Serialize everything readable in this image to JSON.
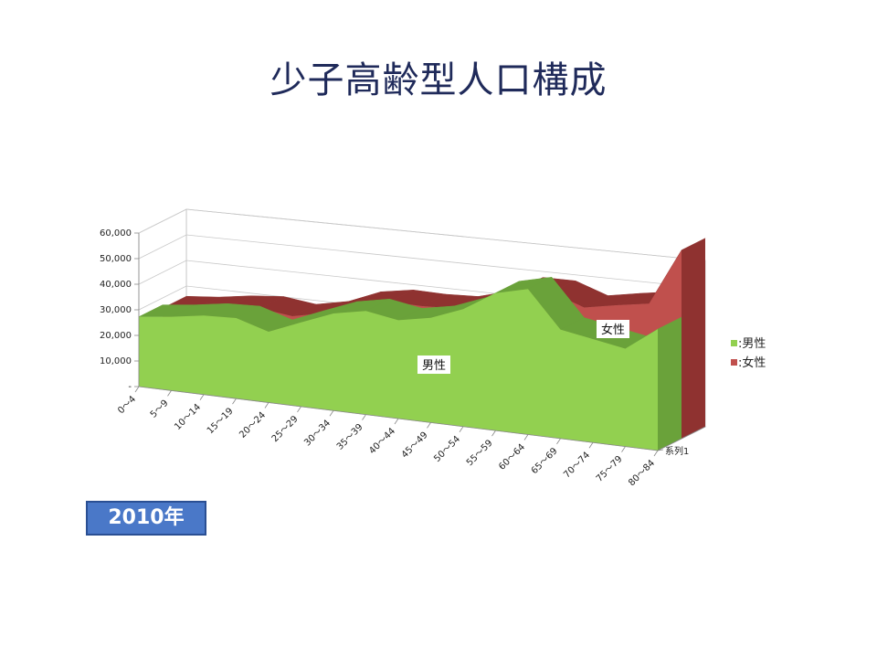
{
  "slide": {
    "title": "少子高齢型人口構成",
    "year_badge": "2010年"
  },
  "chart_data": {
    "type": "area",
    "categories": [
      "0～4",
      "5～9",
      "10～14",
      "15～19",
      "20～24",
      "25～29",
      "30～34",
      "35～39",
      "40～44",
      "45～49",
      "50～54",
      "55～59",
      "60～64",
      "65～69",
      "70～74",
      "75～79",
      "80～84"
    ],
    "series": [
      {
        "name": "男性",
        "color": "#92d050",
        "values": [
          27300,
          28700,
          30600,
          31000,
          27100,
          32100,
          36800,
          39100,
          36900,
          39100,
          43600,
          50800,
          53500,
          39900,
          37700,
          35500,
          43800
        ]
      },
      {
        "name": "女性",
        "color": "#c0504d",
        "values": [
          26000,
          27100,
          29000,
          30100,
          28500,
          31000,
          36000,
          38000,
          37700,
          38200,
          41500,
          47800,
          47800,
          43600,
          45700,
          47500,
          68000
        ]
      }
    ],
    "y_ticks": [
      "-",
      "10,000",
      "20,000",
      "30,000",
      "40,000",
      "50,000",
      "60,000"
    ],
    "ylim": [
      0,
      60000
    ],
    "depth_axis_label": "系列1",
    "legend": [
      ":男性",
      ":女性"
    ],
    "legend_position": "right",
    "series_labels": [
      "男性",
      "女性"
    ],
    "grid": true
  }
}
